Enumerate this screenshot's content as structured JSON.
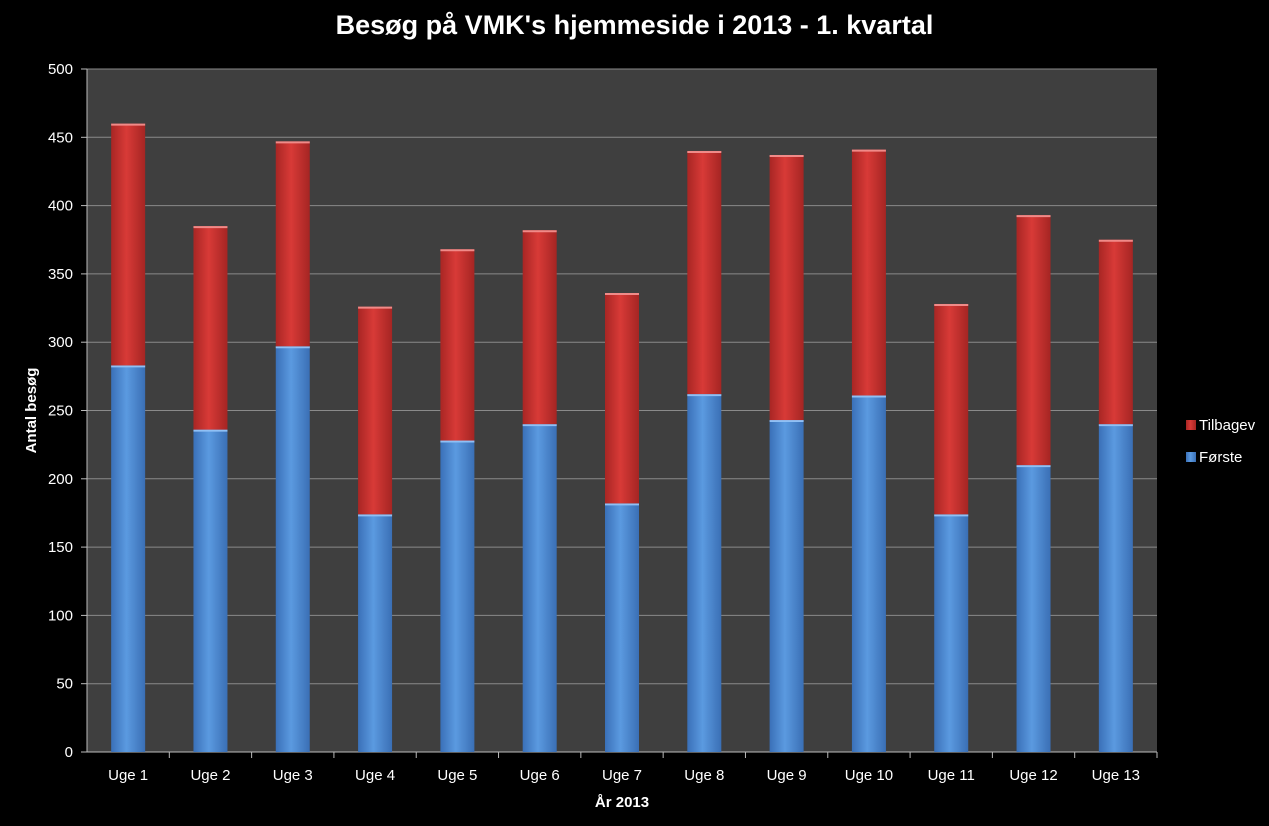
{
  "chart_data": {
    "type": "bar",
    "stacked": true,
    "title": "Besøg på  VMK's hjemmeside i 2013 - 1. kvartal",
    "xlabel": "År 2013",
    "ylabel": "Antal besøg",
    "ylim": [
      0,
      500
    ],
    "yticks": [
      0,
      50,
      100,
      150,
      200,
      250,
      300,
      350,
      400,
      450,
      500
    ],
    "grid": true,
    "legend_position": "right",
    "categories": [
      "Uge 1",
      "Uge 2",
      "Uge 3",
      "Uge 4",
      "Uge 5",
      "Uge 6",
      "Uge 7",
      "Uge 8",
      "Uge 9",
      "Uge 10",
      "Uge 11",
      "Uge 12",
      "Uge 13"
    ],
    "series": [
      {
        "name": "Første",
        "color": "#4a86d0",
        "values": [
          283,
          236,
          297,
          174,
          228,
          240,
          182,
          262,
          243,
          261,
          174,
          210,
          240
        ]
      },
      {
        "name": "Tilbagev",
        "color": "#c8302f",
        "values": [
          177,
          149,
          150,
          152,
          140,
          142,
          154,
          178,
          194,
          180,
          154,
          183,
          135
        ]
      }
    ],
    "legend_order": [
      "Tilbagev",
      "Første"
    ],
    "plot_background": "#3f3f3f",
    "page_background": "#000000",
    "gridline_color": "#8a8a8a"
  }
}
